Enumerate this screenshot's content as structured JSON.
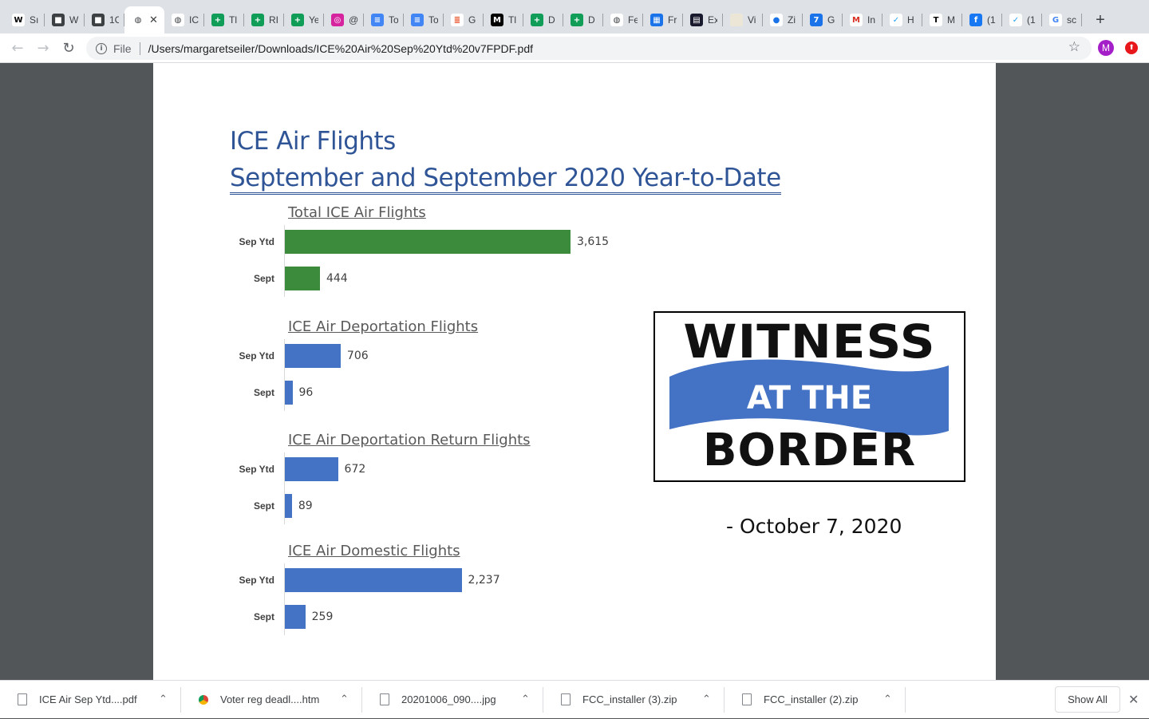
{
  "tabs": [
    {
      "text": "Sı",
      "icon": "wikipedia-icon",
      "glyph": "W",
      "color": "#ffffff",
      "fg": "#000000"
    },
    {
      "text": "W",
      "icon": "cube-icon",
      "glyph": "■",
      "color": "#3c4043",
      "fg": "#ffffff"
    },
    {
      "text": "1C",
      "icon": "cube-icon",
      "glyph": "■",
      "color": "#3c4043",
      "fg": "#ffffff"
    },
    {
      "text": "",
      "icon": "globe-icon",
      "glyph": "◍",
      "color": "#ffffff",
      "fg": "#3c4043",
      "active": true
    },
    {
      "text": "IC",
      "icon": "globe-icon",
      "glyph": "◍",
      "color": "#ffffff",
      "fg": "#3c4043"
    },
    {
      "text": "Tl",
      "icon": "sheets-icon",
      "glyph": "+",
      "color": "#0f9d58",
      "fg": "#ffffff"
    },
    {
      "text": "RI",
      "icon": "sheets-icon",
      "glyph": "+",
      "color": "#0f9d58",
      "fg": "#ffffff"
    },
    {
      "text": "Ye",
      "icon": "sheets-icon",
      "glyph": "+",
      "color": "#0f9d58",
      "fg": "#ffffff"
    },
    {
      "text": "@",
      "icon": "instagram-icon",
      "glyph": "◎",
      "color": "#d6249f",
      "fg": "#ffffff"
    },
    {
      "text": "To",
      "icon": "docs-icon",
      "glyph": "≡",
      "color": "#4285f4",
      "fg": "#ffffff"
    },
    {
      "text": "To",
      "icon": "docs-icon",
      "glyph": "≡",
      "color": "#4285f4",
      "fg": "#ffffff"
    },
    {
      "text": "G",
      "icon": "stack-icon",
      "glyph": "≣",
      "color": "#ffffff",
      "fg": "#e8491d"
    },
    {
      "text": "Tl",
      "icon": "medium-icon",
      "glyph": "M",
      "color": "#000000",
      "fg": "#ffffff"
    },
    {
      "text": "D",
      "icon": "sheets-icon",
      "glyph": "+",
      "color": "#0f9d58",
      "fg": "#ffffff"
    },
    {
      "text": "D",
      "icon": "sheets-icon",
      "glyph": "+",
      "color": "#0f9d58",
      "fg": "#ffffff"
    },
    {
      "text": "Fe",
      "icon": "globe-icon",
      "glyph": "◍",
      "color": "#ffffff",
      "fg": "#3c4043"
    },
    {
      "text": "Fr",
      "icon": "calendar-icon",
      "glyph": "▦",
      "color": "#1a73e8",
      "fg": "#ffffff"
    },
    {
      "text": "Ex",
      "icon": "app-icon",
      "glyph": "▤",
      "color": "#1a1a2e",
      "fg": "#ffffff"
    },
    {
      "text": "Vi",
      "icon": "blank-icon",
      "glyph": "",
      "color": "#ece6d6",
      "fg": "#ffffff"
    },
    {
      "text": "Zi",
      "icon": "pin-icon",
      "glyph": "●",
      "color": "#ffffff",
      "fg": "#1a73e8"
    },
    {
      "text": "G",
      "icon": "calendar7-icon",
      "glyph": "7",
      "color": "#1a73e8",
      "fg": "#ffffff"
    },
    {
      "text": "In",
      "icon": "gmail-icon",
      "glyph": "M",
      "color": "#ffffff",
      "fg": "#d93025"
    },
    {
      "text": "H",
      "icon": "twitter-icon",
      "glyph": "✓",
      "color": "#ffffff",
      "fg": "#1da1f2"
    },
    {
      "text": "M",
      "icon": "nyt-icon",
      "glyph": "T",
      "color": "#ffffff",
      "fg": "#000000"
    },
    {
      "text": "(1",
      "icon": "facebook-icon",
      "glyph": "f",
      "color": "#1877f2",
      "fg": "#ffffff"
    },
    {
      "text": "(1",
      "icon": "twitter-icon",
      "glyph": "✓",
      "color": "#ffffff",
      "fg": "#1da1f2"
    },
    {
      "text": "sc",
      "icon": "google-icon",
      "glyph": "G",
      "color": "#ffffff",
      "fg": "#4285f4"
    }
  ],
  "toolbar": {
    "back_glyph": "←",
    "forward_glyph": "→",
    "reload_glyph": "↻",
    "info_glyph": "i",
    "scheme": "File",
    "url": "/Users/margaretseiler/Downloads/ICE%20Air%20Sep%20Ytd%20v7FPDF.pdf",
    "star_glyph": "☆",
    "avatar_letter": "M",
    "extension_glyph": "⬆",
    "new_tab_glyph": "+",
    "tab_close_glyph": "✕"
  },
  "document": {
    "title": "ICE Air Flights",
    "subtitle": "September and September 2020 Year-to-Date",
    "date_line": "-  October 7, 2020",
    "logo": {
      "line1": "WITNESS",
      "line2": "AT THE",
      "line3": "BORDER",
      "banner_color": "#4472c4"
    }
  },
  "chart_data": [
    {
      "type": "bar",
      "title": "Total ICE Air Flights",
      "categories": [
        "Sep Ytd",
        "Sept"
      ],
      "values": [
        3615,
        444
      ],
      "labels": [
        "3,615",
        "444"
      ],
      "color": "#3c8a3c",
      "xlim": [
        0,
        4500
      ]
    },
    {
      "type": "bar",
      "title": "ICE Air Deportation Flights",
      "categories": [
        "Sep Ytd",
        "Sept"
      ],
      "values": [
        706,
        96
      ],
      "labels": [
        "706",
        "96"
      ],
      "color": "#4472c4",
      "xlim": [
        0,
        4500
      ]
    },
    {
      "type": "bar",
      "title": "ICE Air Deportation Return Flights",
      "categories": [
        "Sep Ytd",
        "Sept"
      ],
      "values": [
        672,
        89
      ],
      "labels": [
        "672",
        "89"
      ],
      "color": "#4472c4",
      "xlim": [
        0,
        4500
      ]
    },
    {
      "type": "bar",
      "title": "ICE Air Domestic Flights",
      "categories": [
        "Sep Ytd",
        "Sept"
      ],
      "values": [
        2237,
        259
      ],
      "labels": [
        "2,237",
        "259"
      ],
      "color": "#4472c4",
      "xlim": [
        0,
        4500
      ]
    }
  ],
  "downloads": {
    "items": [
      {
        "name": "ICE Air Sep Ytd....pdf",
        "icon": "file-icon"
      },
      {
        "name": "Voter reg deadl....htm",
        "icon": "chrome-icon"
      },
      {
        "name": "20201006_090....jpg",
        "icon": "file-icon"
      },
      {
        "name": "FCC_installer (3).zip",
        "icon": "zip-icon"
      },
      {
        "name": "FCC_installer (2).zip",
        "icon": "zip-icon"
      }
    ],
    "caret_glyph": "⌃",
    "show_all": "Show All",
    "close_glyph": "✕"
  }
}
